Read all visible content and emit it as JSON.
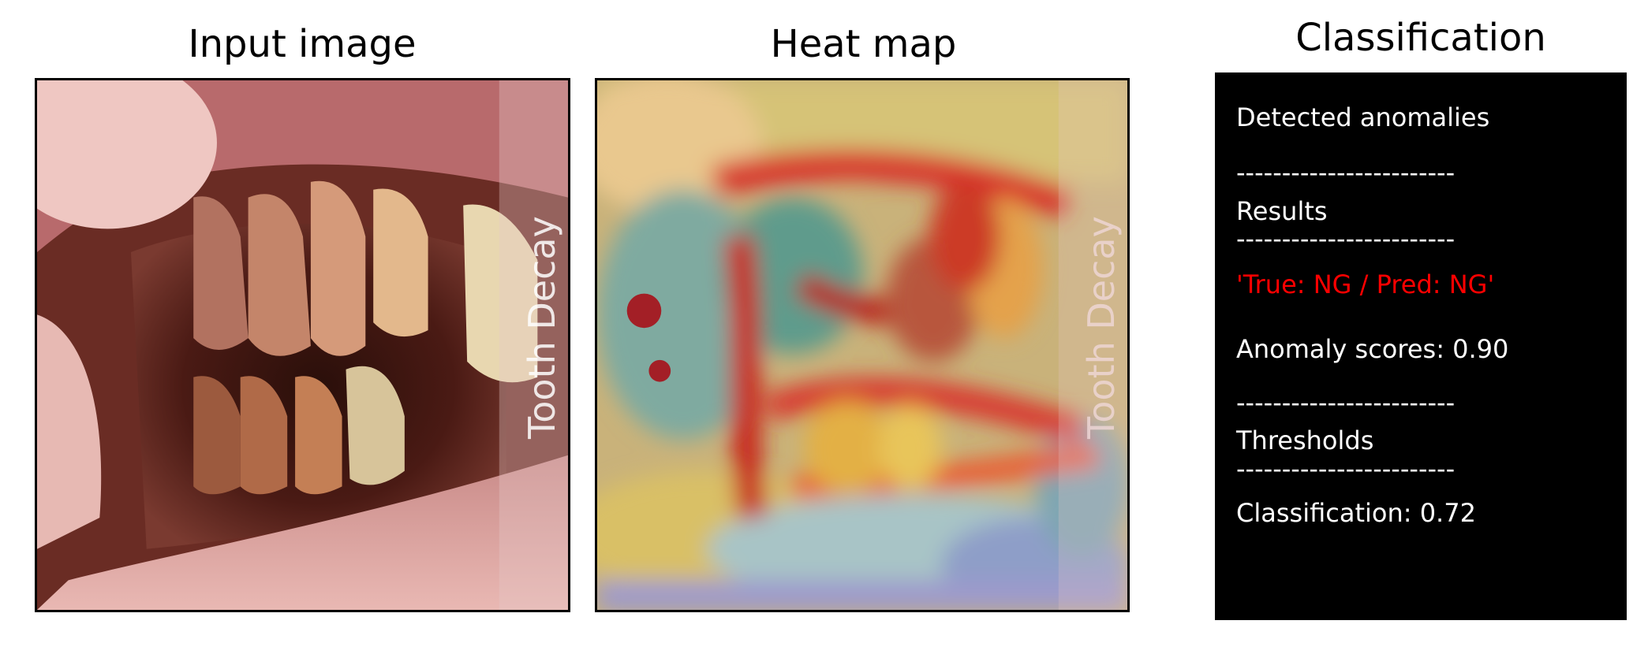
{
  "panels": {
    "input": {
      "title": "Input image",
      "overlay_text": "Tooth Decay"
    },
    "heatmap": {
      "title": "Heat map",
      "overlay_text": "Tooth Decay"
    },
    "classification": {
      "title": "Classification",
      "heading": "Detected anomalies",
      "sep1": "------------------------",
      "results_label": "Results",
      "sep2": "------------------------",
      "result_value": "'True: NG / Pred: NG'",
      "anomaly_score": "Anomaly scores: 0.90",
      "sep3": "------------------------",
      "thresholds_label": "Thresholds",
      "sep4": "------------------------",
      "classification_threshold": "Classification: 0.72"
    }
  },
  "colors": {
    "prediction_ng": "#ff0000",
    "panel_bg": "#000000",
    "panel_text": "#ffffff"
  }
}
